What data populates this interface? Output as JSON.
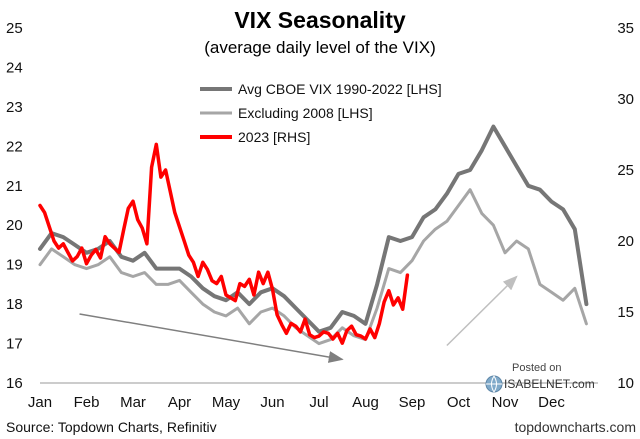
{
  "chart_data": {
    "type": "line",
    "title": "VIX Seasonality",
    "subtitle": "(average daily level of the VIX)",
    "left_axis": {
      "min": 16,
      "max": 25,
      "ticks": [
        "16",
        "17",
        "18",
        "19",
        "20",
        "21",
        "22",
        "23",
        "24",
        "25"
      ]
    },
    "right_axis": {
      "min": 10,
      "max": 35,
      "ticks": [
        "10",
        "15",
        "20",
        "25",
        "30",
        "35"
      ]
    },
    "x_ticks": [
      "Jan",
      "Feb",
      "Mar",
      "Apr",
      "May",
      "Jun",
      "Jul",
      "Aug",
      "Sep",
      "Oct",
      "Nov",
      "Dec"
    ],
    "x_range": [
      0,
      12
    ],
    "legend": {
      "placement": "top-center"
    },
    "series": [
      {
        "name": "Avg CBOE VIX 1990-2022 [LHS]",
        "axis": "left",
        "color": "#767676",
        "x": [
          0,
          0.25,
          0.5,
          0.75,
          1,
          1.25,
          1.5,
          1.75,
          2,
          2.25,
          2.5,
          2.75,
          3,
          3.25,
          3.5,
          3.75,
          4,
          4.25,
          4.5,
          4.75,
          5,
          5.25,
          5.5,
          5.75,
          6,
          6.25,
          6.5,
          6.75,
          7,
          7.25,
          7.5,
          7.75,
          8,
          8.25,
          8.5,
          8.75,
          9,
          9.25,
          9.5,
          9.75,
          10,
          10.25,
          10.5,
          10.75,
          11,
          11.25,
          11.5,
          11.75
        ],
        "values": [
          19.4,
          19.8,
          19.7,
          19.5,
          19.3,
          19.4,
          19.6,
          19.2,
          19.1,
          19.3,
          18.9,
          18.9,
          18.9,
          18.7,
          18.4,
          18.2,
          18.1,
          18.3,
          18.0,
          18.3,
          18.4,
          18.2,
          17.9,
          17.6,
          17.3,
          17.4,
          17.8,
          17.7,
          17.5,
          18.5,
          19.7,
          19.6,
          19.7,
          20.2,
          20.4,
          20.8,
          21.3,
          21.4,
          21.9,
          22.5,
          22.0,
          21.5,
          21.0,
          20.9,
          20.6,
          20.4,
          19.9,
          18.0
        ]
      },
      {
        "name": "Excluding 2008 [LHS]",
        "axis": "left",
        "color": "#a6a6a6",
        "x": [
          0,
          0.25,
          0.5,
          0.75,
          1,
          1.25,
          1.5,
          1.75,
          2,
          2.25,
          2.5,
          2.75,
          3,
          3.25,
          3.5,
          3.75,
          4,
          4.25,
          4.5,
          4.75,
          5,
          5.25,
          5.5,
          5.75,
          6,
          6.25,
          6.5,
          6.75,
          7,
          7.25,
          7.5,
          7.75,
          8,
          8.25,
          8.5,
          8.75,
          9,
          9.25,
          9.5,
          9.75,
          10,
          10.25,
          10.5,
          10.75,
          11,
          11.25,
          11.5,
          11.75
        ],
        "values": [
          19.0,
          19.4,
          19.2,
          19.0,
          18.9,
          19.0,
          19.2,
          18.8,
          18.7,
          18.8,
          18.5,
          18.5,
          18.6,
          18.3,
          18.0,
          17.8,
          17.7,
          17.9,
          17.5,
          17.8,
          17.9,
          17.7,
          17.4,
          17.2,
          17.0,
          17.1,
          17.4,
          17.2,
          17.1,
          17.9,
          18.9,
          18.8,
          19.1,
          19.6,
          19.9,
          20.1,
          20.5,
          20.9,
          20.3,
          20.0,
          19.3,
          19.6,
          19.4,
          18.5,
          18.3,
          18.1,
          18.4,
          17.5
        ]
      },
      {
        "name": "2023 [RHS]",
        "axis": "right",
        "color": "#ff0000",
        "x": [
          0,
          0.1,
          0.2,
          0.3,
          0.4,
          0.5,
          0.6,
          0.7,
          0.8,
          0.9,
          1.0,
          1.1,
          1.2,
          1.3,
          1.4,
          1.5,
          1.6,
          1.7,
          1.8,
          1.9,
          2.0,
          2.1,
          2.2,
          2.3,
          2.4,
          2.5,
          2.6,
          2.7,
          2.8,
          2.9,
          3.0,
          3.1,
          3.2,
          3.3,
          3.4,
          3.5,
          3.6,
          3.7,
          3.8,
          3.9,
          4.0,
          4.1,
          4.2,
          4.3,
          4.4,
          4.5,
          4.6,
          4.7,
          4.8,
          4.9,
          5.0,
          5.1,
          5.2,
          5.3,
          5.4,
          5.5,
          5.6,
          5.7,
          5.8,
          5.9,
          6.0,
          6.1,
          6.2,
          6.3,
          6.4,
          6.5,
          6.6,
          6.7,
          6.8,
          6.9,
          7.0,
          7.1,
          7.2,
          7.3,
          7.4,
          7.5,
          7.6,
          7.7,
          7.8,
          7.9
        ],
        "values": [
          22.5,
          22.0,
          21.0,
          20.0,
          19.5,
          19.8,
          19.2,
          18.6,
          18.9,
          19.5,
          18.4,
          19.0,
          19.4,
          18.8,
          20.3,
          19.8,
          19.5,
          19.2,
          20.8,
          22.3,
          22.8,
          21.5,
          20.9,
          19.8,
          25.2,
          26.8,
          24.5,
          25.0,
          23.5,
          22.0,
          21.0,
          20.0,
          19.0,
          18.5,
          17.5,
          18.5,
          18.0,
          17.2,
          17.0,
          17.5,
          16.2,
          16.0,
          15.8,
          17.0,
          16.8,
          17.3,
          16.2,
          17.8,
          17.0,
          17.8,
          16.6,
          14.8,
          14.1,
          13.5,
          14.2,
          14.0,
          13.6,
          14.5,
          13.4,
          13.2,
          13.3,
          13.6,
          13.5,
          13.1,
          13.5,
          12.8,
          13.7,
          14.0,
          13.4,
          13.3,
          13.1,
          13.8,
          13.2,
          14.2,
          15.7,
          16.5,
          15.5,
          16.0,
          15.2,
          17.6
        ]
      }
    ],
    "arrows": [
      {
        "from": [
          0.85,
          17.75
        ],
        "to": [
          6.5,
          16.6
        ],
        "color": "#7f7f7f"
      },
      {
        "from": [
          8.75,
          16.95
        ],
        "to": [
          10.25,
          18.7
        ],
        "color": "#bfbfbf"
      }
    ],
    "source": "Source: Topdown Charts, Refinitiv",
    "footer_url": "topdowncharts.com",
    "watermark": {
      "posted": "Posted on",
      "brand": "ISABELNET.com"
    }
  }
}
